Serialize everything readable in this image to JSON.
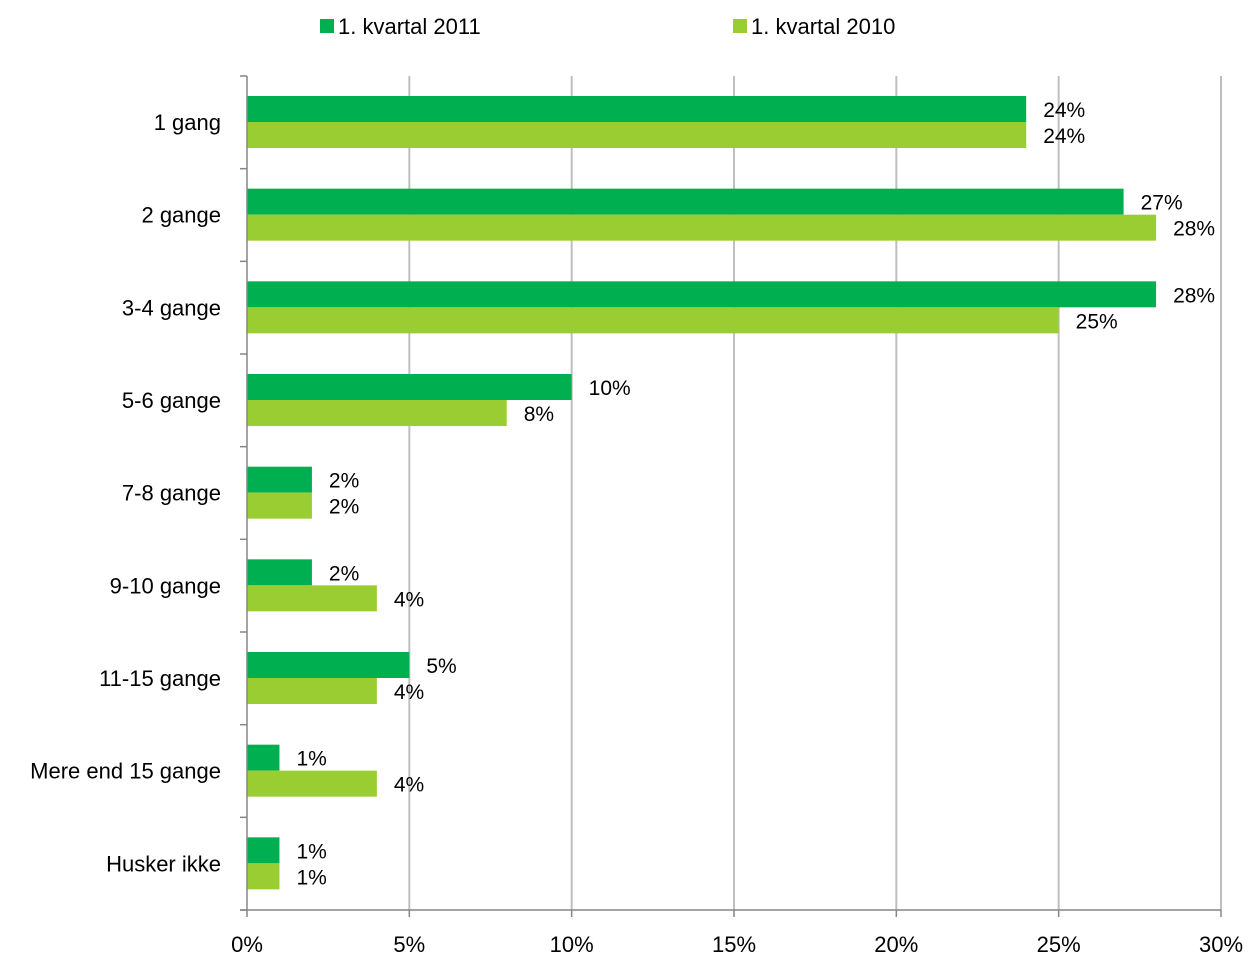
{
  "chart_data": {
    "type": "bar",
    "orientation": "horizontal",
    "title": "",
    "xlabel": "",
    "ylabel": "",
    "categories": [
      "1 gang",
      "2 gange",
      "3-4 gange",
      "5-6 gange",
      "7-8 gange",
      "9-10 gange",
      "11-15 gange",
      "Mere end 15 gange",
      "Husker ikke"
    ],
    "series": [
      {
        "name": "1. kvartal 2011",
        "color": "#00B050",
        "values": [
          24,
          27,
          28,
          10,
          2,
          2,
          5,
          1,
          1
        ],
        "labels": [
          "24%",
          "27%",
          "28%",
          "10%",
          "2%",
          "2%",
          "5%",
          "1%",
          "1%"
        ]
      },
      {
        "name": "1. kvartal 2010",
        "color": "#9ACD32",
        "values": [
          24,
          28,
          25,
          8,
          2,
          4,
          4,
          4,
          1
        ],
        "labels": [
          "24%",
          "28%",
          "25%",
          "8%",
          "2%",
          "4%",
          "4%",
          "4%",
          "1%"
        ]
      }
    ],
    "xlim": [
      0,
      30
    ],
    "x_ticks": [
      0,
      5,
      10,
      15,
      20,
      25,
      30
    ],
    "x_tick_labels": [
      "0%",
      "5%",
      "10%",
      "15%",
      "20%",
      "25%",
      "30%"
    ],
    "grid": "vertical",
    "legend_position": "top"
  }
}
